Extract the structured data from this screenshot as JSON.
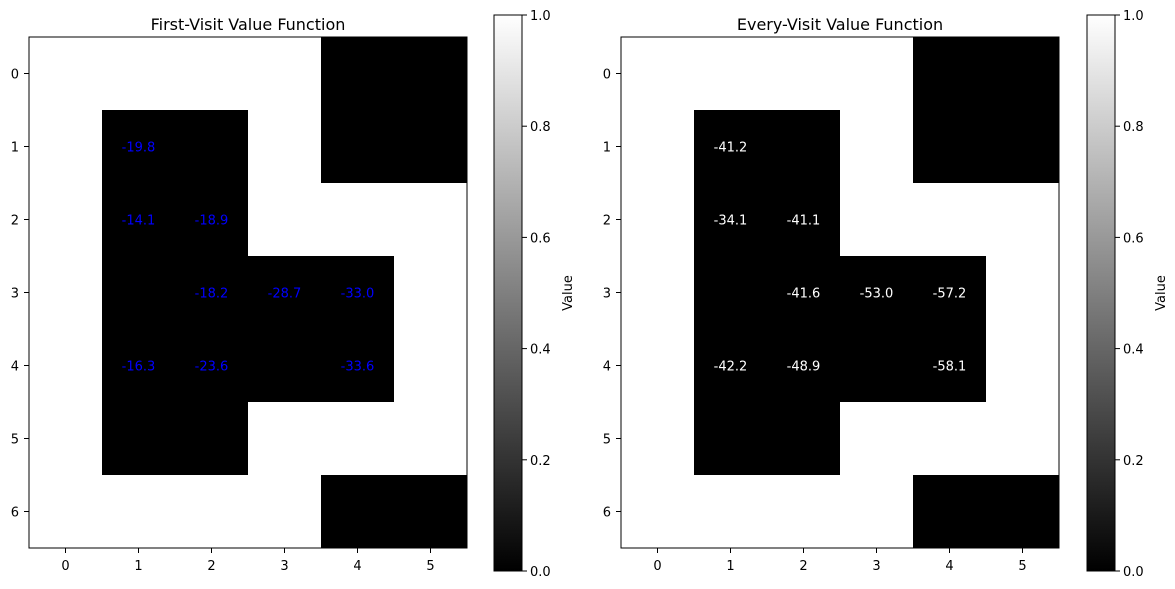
{
  "chart_data": [
    {
      "type": "heatmap",
      "title": "First-Visit Value Function",
      "xlabel": "",
      "ylabel": "",
      "rows": [
        0,
        1,
        2,
        3,
        4,
        5,
        6
      ],
      "cols": [
        0,
        1,
        2,
        3,
        4,
        5
      ],
      "cell_colors": [
        [
          1,
          1,
          1,
          1,
          0,
          0
        ],
        [
          1,
          0,
          0,
          1,
          0,
          0
        ],
        [
          1,
          0,
          0,
          1,
          1,
          1
        ],
        [
          1,
          0,
          0,
          0,
          0,
          1
        ],
        [
          1,
          0,
          0,
          0,
          0,
          1
        ],
        [
          1,
          0,
          0,
          1,
          1,
          1
        ],
        [
          1,
          1,
          1,
          1,
          0,
          0
        ]
      ],
      "annotations": [
        {
          "row": 1,
          "col": 1,
          "text": "-19.8"
        },
        {
          "row": 2,
          "col": 1,
          "text": "-14.1"
        },
        {
          "row": 2,
          "col": 2,
          "text": "-18.9"
        },
        {
          "row": 3,
          "col": 2,
          "text": "-18.2"
        },
        {
          "row": 3,
          "col": 3,
          "text": "-28.7"
        },
        {
          "row": 3,
          "col": 4,
          "text": "-33.0"
        },
        {
          "row": 4,
          "col": 1,
          "text": "-16.3"
        },
        {
          "row": 4,
          "col": 2,
          "text": "-23.6"
        },
        {
          "row": 4,
          "col": 4,
          "text": "-33.6"
        }
      ],
      "annotation_color": "#0000ff",
      "colorbar": {
        "label": "Value",
        "range": [
          0.0,
          1.0
        ],
        "ticks": [
          "0.0",
          "0.2",
          "0.4",
          "0.6",
          "0.8",
          "1.0"
        ],
        "colormap": "gray"
      }
    },
    {
      "type": "heatmap",
      "title": "Every-Visit Value Function",
      "xlabel": "",
      "ylabel": "",
      "rows": [
        0,
        1,
        2,
        3,
        4,
        5,
        6
      ],
      "cols": [
        0,
        1,
        2,
        3,
        4,
        5
      ],
      "cell_colors": [
        [
          1,
          1,
          1,
          1,
          0,
          0
        ],
        [
          1,
          0,
          0,
          1,
          0,
          0
        ],
        [
          1,
          0,
          0,
          1,
          1,
          1
        ],
        [
          1,
          0,
          0,
          0,
          0,
          1
        ],
        [
          1,
          0,
          0,
          0,
          0,
          1
        ],
        [
          1,
          0,
          0,
          1,
          1,
          1
        ],
        [
          1,
          1,
          1,
          1,
          0,
          0
        ]
      ],
      "annotations": [
        {
          "row": 1,
          "col": 1,
          "text": "-41.2"
        },
        {
          "row": 2,
          "col": 1,
          "text": "-34.1"
        },
        {
          "row": 2,
          "col": 2,
          "text": "-41.1"
        },
        {
          "row": 3,
          "col": 2,
          "text": "-41.6"
        },
        {
          "row": 3,
          "col": 3,
          "text": "-53.0"
        },
        {
          "row": 3,
          "col": 4,
          "text": "-57.2"
        },
        {
          "row": 4,
          "col": 1,
          "text": "-42.2"
        },
        {
          "row": 4,
          "col": 2,
          "text": "-48.9"
        },
        {
          "row": 4,
          "col": 4,
          "text": "-58.1"
        }
      ],
      "annotation_color": "#ffffff",
      "colorbar": {
        "label": "Value",
        "range": [
          0.0,
          1.0
        ],
        "ticks": [
          "0.0",
          "0.2",
          "0.4",
          "0.6",
          "0.8",
          "1.0"
        ],
        "colormap": "gray"
      }
    }
  ]
}
